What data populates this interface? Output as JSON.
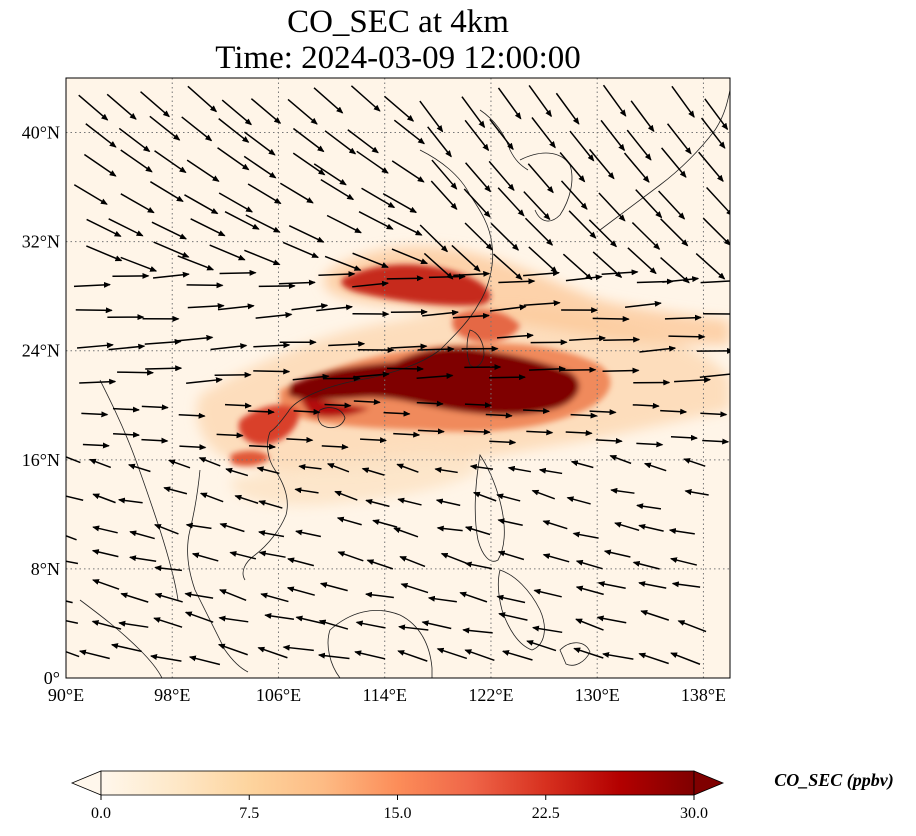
{
  "title": {
    "line1": "CO_SEC at 4km",
    "line2": "Time: 2024-03-09 12:00:00"
  },
  "map": {
    "lon_range": [
      90,
      140
    ],
    "lat_range": [
      0,
      44
    ],
    "gridlines": "dotted gray",
    "x_ticks": [
      "90°E",
      "98°E",
      "106°E",
      "114°E",
      "122°E",
      "130°E",
      "138°E"
    ],
    "x_tick_values": [
      90,
      98,
      106,
      114,
      122,
      130,
      138
    ],
    "y_ticks": [
      "0°",
      "8°N",
      "16°N",
      "24°N",
      "32°N",
      "40°N"
    ],
    "y_tick_values": [
      0,
      8,
      16,
      24,
      32,
      40
    ],
    "background_color": "#fff5e8",
    "vector_color": "#000000",
    "vector_field": "wind vectors; westerly flow north of ~18°N, easterly flow in the south"
  },
  "colorbar": {
    "label": "CO_SEC (ppbv)",
    "min": 0.0,
    "max": 30.0,
    "extend": "both",
    "ticks": [
      "0.0",
      "7.5",
      "15.0",
      "22.5",
      "30.0"
    ],
    "tick_values": [
      0,
      7.5,
      15,
      22.5,
      30
    ],
    "colormap": "OrRd",
    "colors": [
      "#fff7ec",
      "#fee8c8",
      "#fdd49e",
      "#fdbb84",
      "#fc8d59",
      "#ef6548",
      "#d7301f",
      "#b30000",
      "#7f0000"
    ]
  }
}
